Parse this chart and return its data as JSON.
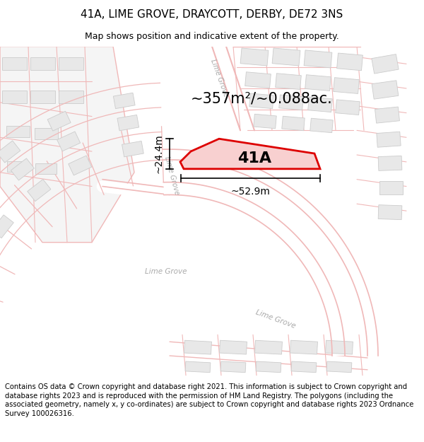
{
  "title": "41A, LIME GROVE, DRAYCOTT, DERBY, DE72 3NS",
  "subtitle": "Map shows position and indicative extent of the property.",
  "footer": "Contains OS data © Crown copyright and database right 2021. This information is subject to Crown copyright and database rights 2023 and is reproduced with the permission of HM Land Registry. The polygons (including the associated geometry, namely x, y co-ordinates) are subject to Crown copyright and database rights 2023 Ordnance Survey 100026316.",
  "area_text": "~357m²/~0.088ac.",
  "label_41a": "41A",
  "dim_width": "~52.9m",
  "dim_height": "~24.4m",
  "road_color": "#f0b8b8",
  "road_label_color": "#aaaaaa",
  "building_fill": "#e8e8e8",
  "building_ec": "#cccccc",
  "map_bg": "#fafafa",
  "prop_fill": "#f8d0d0",
  "prop_edge": "#dd0000",
  "title_fontsize": 11,
  "subtitle_fontsize": 9,
  "footer_fontsize": 7.2
}
